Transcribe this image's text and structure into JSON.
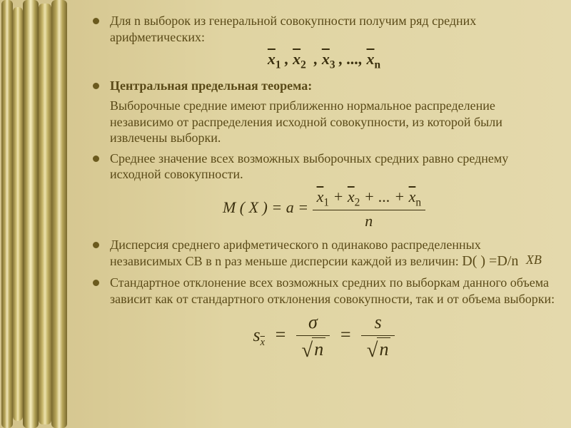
{
  "colors": {
    "text": "#5a4a18",
    "formula": "#3a2f0e",
    "bg_left": "#d2c28a",
    "bg_right": "#e4d9ac"
  },
  "bullets": {
    "b1": "Для n выборок из генеральной совокупности получим ряд средних арифметических:",
    "b2": "Центральная предельная теорема:",
    "b2_body": "Выборочные средние имеют приближенно  нормальное распределение независимо от распределения исходной совокупности, из которой были извлечены выборки.",
    "b3": "Среднее значение всех возможных выборочных средних равно среднему исходной совокупности.",
    "b4_part1": "Дисперсия среднего арифметического n одинаково распределенных независимых СВ в n раз меньше дисперсии каждой из величин:",
    "b4_d": "D(      )  =D/n",
    "b5": "Стандартное отклонение всех возможных средних по выборкам данного объема зависит как от стандартного отклонения совокупности, так и от объема выборки:"
  },
  "formulas": {
    "seq": {
      "x": "x",
      "subs": [
        "1",
        "2",
        "3",
        "n"
      ],
      "ellipsis": "..."
    },
    "mean": {
      "lhs": "M ( X ) = a =",
      "num_terms_subs": [
        "1",
        "2",
        "n"
      ],
      "den": "n",
      "plus_ellipsis": "+ ... +"
    },
    "xb_sub": "B",
    "x_var": "X",
    "sx": {
      "s": "s",
      "xbar_sub": "x̄",
      "sigma": "σ",
      "n": "n"
    }
  }
}
